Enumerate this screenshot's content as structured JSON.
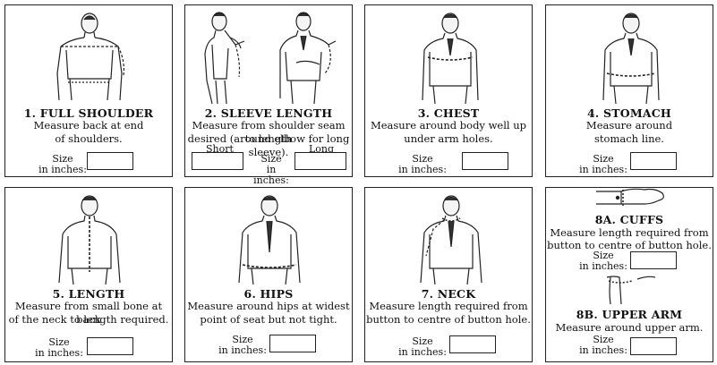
{
  "cards": [
    {
      "title": "1. FULL SHOULDER",
      "desc1": "Measure back at end",
      "desc2": "of shoulders.",
      "size1": "Size",
      "size2": "in inches:"
    },
    {
      "title": "2. SLEEVE LENGTH",
      "desc1": "Measure from shoulder seam to length",
      "desc2": "desired (around elbow for long sleeve).",
      "short": "Short",
      "long": "Long",
      "size1": "Size",
      "size2": "in inches:"
    },
    {
      "title": "3. CHEST",
      "desc1": "Measure around body well up",
      "desc2": "under arm holes.",
      "size1": "Size",
      "size2": "in inches:"
    },
    {
      "title": "4. STOMACH",
      "desc1": "Measure around",
      "desc2": "stomach line.",
      "size1": "Size",
      "size2": "in inches:"
    },
    {
      "title": "5. LENGTH",
      "desc1": "Measure from small bone at back",
      "desc2": "of the neck to length required.",
      "size1": "Size",
      "size2": "in inches:"
    },
    {
      "title": "6. HIPS",
      "desc1": "Measure around hips at widest",
      "desc2": "point of seat but not tight.",
      "size1": "Size",
      "size2": "in inches:"
    },
    {
      "title": "7. NECK",
      "desc1": "Measure length required from",
      "desc2": "button to centre of button hole.",
      "size1": "Size",
      "size2": "in inches:"
    },
    {
      "title": "8A. CUFFS",
      "desc1": "Measure length required from",
      "desc2": "button to centre of button hole.",
      "size1": "Size",
      "size2": "in inches:",
      "title_b": "8B. UPPER ARM",
      "desc_b": "Measure around upper arm.",
      "size1_b": "Size",
      "size2_b": "in inches:"
    }
  ],
  "icons": [
    "front-torso-icon",
    "back-torso-icon",
    "side-arm-icon",
    "wrist-cuff-icon",
    "upper-arm-icon"
  ]
}
